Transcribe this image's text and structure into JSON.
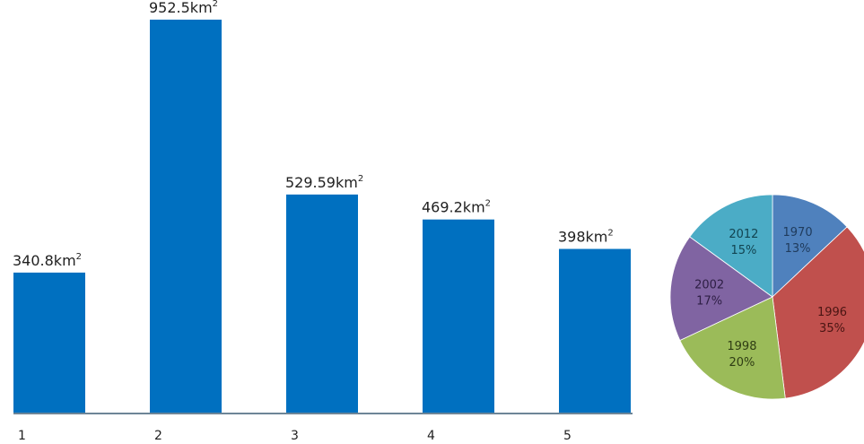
{
  "colors": {
    "bar": "#0070c0",
    "axis": "#6d8597",
    "pie": [
      "#4f81bd",
      "#c0504d",
      "#9bbb59",
      "#8064a2",
      "#4bacc6"
    ],
    "pie_text": [
      "#1f3b5c",
      "#4a1513",
      "#2f3d14",
      "#2d1e44",
      "#124451"
    ]
  },
  "chart_data": [
    {
      "type": "bar",
      "categories": [
        "1",
        "2",
        "3",
        "4",
        "5"
      ],
      "values": [
        340.8,
        952.5,
        529.59,
        469.2,
        398
      ],
      "data_labels": [
        "340.8km",
        "952.5km",
        "529.59km",
        "469.2km",
        "398km"
      ],
      "label_unit_superscript": "2",
      "title": "",
      "xlabel": "",
      "ylabel": "",
      "ylim": [
        0,
        1000
      ],
      "grid": false,
      "legend": "none"
    },
    {
      "type": "pie",
      "slices": [
        {
          "label": "1970",
          "value": 13,
          "value_label": "13%"
        },
        {
          "label": "1996",
          "value": 35,
          "value_label": "35%"
        },
        {
          "label": "1998",
          "value": 20,
          "value_label": "20%"
        },
        {
          "label": "2002",
          "value": 17,
          "value_label": "17%"
        },
        {
          "label": "2012",
          "value": 15,
          "value_label": "15%"
        }
      ],
      "start": "top",
      "direction": "clockwise",
      "legend": "none"
    }
  ]
}
